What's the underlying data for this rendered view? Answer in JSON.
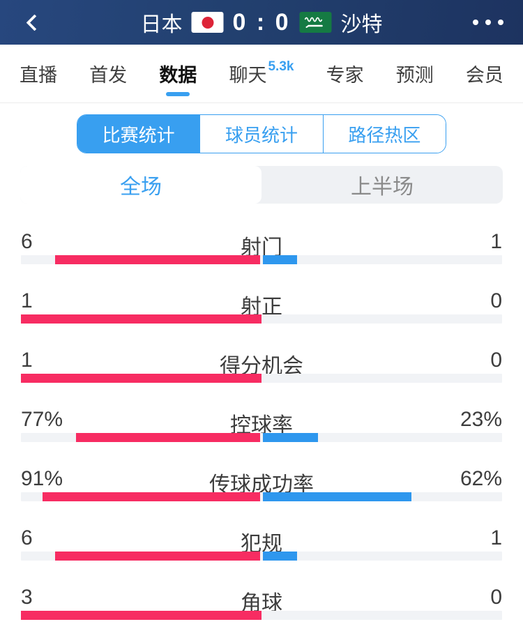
{
  "header": {
    "home_team": "日本",
    "away_team": "沙特",
    "score": "0 : 0"
  },
  "tabs": [
    {
      "label": "直播"
    },
    {
      "label": "首发"
    },
    {
      "label": "数据",
      "selected": true
    },
    {
      "label": "聊天",
      "badge": "5.3k"
    },
    {
      "label": "专家"
    },
    {
      "label": "预测"
    },
    {
      "label": "会员"
    }
  ],
  "segments": [
    {
      "label": "比赛统计",
      "selected": true
    },
    {
      "label": "球员统计"
    },
    {
      "label": "路径热区"
    }
  ],
  "period_toggle": [
    {
      "label": "全场",
      "selected": true
    },
    {
      "label": "上半场"
    }
  ],
  "colors": {
    "home_bar": "#f72c62",
    "away_bar": "#2e97ee",
    "accent": "#389ff0",
    "navbar": "#22406f",
    "saudi_flag_green": "#157a43",
    "japan_flag_red": "#dd2438"
  },
  "chart_data": {
    "type": "bar",
    "title": "比赛统计 - 全场",
    "legend_home": "日本",
    "legend_away": "沙特",
    "rows": [
      {
        "label": "射门",
        "home": 6,
        "away": 1,
        "format": "count"
      },
      {
        "label": "射正",
        "home": 1,
        "away": 0,
        "format": "count"
      },
      {
        "label": "得分机会",
        "home": 1,
        "away": 0,
        "format": "count"
      },
      {
        "label": "控球率",
        "home": 77,
        "away": 23,
        "format": "percent"
      },
      {
        "label": "传球成功率",
        "home": 91,
        "away": 62,
        "format": "percent"
      },
      {
        "label": "犯规",
        "home": 6,
        "away": 1,
        "format": "count"
      },
      {
        "label": "角球",
        "home": 3,
        "away": 0,
        "format": "count"
      }
    ]
  }
}
